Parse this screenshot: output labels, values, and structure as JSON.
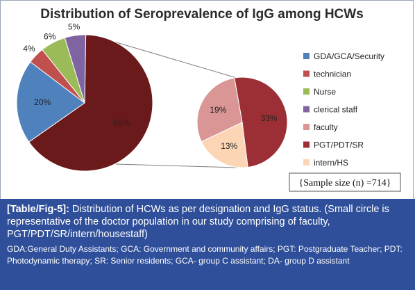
{
  "chart_data": {
    "type": "pie",
    "title": "Distribution of Seroprevalence of IgG among HCWs",
    "main_pie": {
      "slices": [
        {
          "category": "GDA/GCA/Security",
          "value": 20,
          "label": "20%",
          "color": "#4f81bd"
        },
        {
          "category": "technician",
          "value": 4,
          "label": "4%",
          "color": "#c0504d"
        },
        {
          "category": "Nurse",
          "value": 6,
          "label": "6%",
          "color": "#9bbb59"
        },
        {
          "category": "clerical staff",
          "value": 5,
          "label": "5%",
          "color": "#8064a2"
        },
        {
          "category": "doctors",
          "value": 65,
          "label": "65%",
          "color": "#6b1a1c"
        }
      ]
    },
    "sub_pie": {
      "slices": [
        {
          "category": "PGT/PDT/SR",
          "value": 33,
          "label": "33%",
          "color": "#9b2f35"
        },
        {
          "category": "intern/HS",
          "value": 13,
          "label": "13%",
          "color": "#fcd5b5"
        },
        {
          "category": "faculty",
          "value": 19,
          "label": "19%",
          "color": "#d99694"
        }
      ]
    },
    "legend": {
      "placement": "right",
      "entries": [
        {
          "label": "GDA/GCA/Security",
          "color": "#4f81bd"
        },
        {
          "label": "technician",
          "color": "#c0504d"
        },
        {
          "label": "Nurse",
          "color": "#9bbb59"
        },
        {
          "label": "clerical staff",
          "color": "#8064a2"
        },
        {
          "label": "faculty",
          "color": "#d99694"
        },
        {
          "label": "PGT/PDT/SR",
          "color": "#9b2f35"
        },
        {
          "label": "intern/HS",
          "color": "#fcd5b5"
        }
      ]
    },
    "annotation": "{Sample size (n) =714}"
  },
  "caption": {
    "ref": "[Table/Fig-5]:",
    "text": " Distribution of HCWs as per designation and IgG status. (Small circle is representative of the doctor population in our study comprising of faculty, PGT/PDT/SR/intern/housestaff)",
    "abbreviations": "GDA:General Duty Assistants; GCA: Government and community affairs; PGT: Postgraduate Teacher; PDT: Photodynamic therapy; SR: Senior residents; GCA- group C assistant; DA- group D assistant"
  },
  "colors": {
    "caption_background": "#2f4f9a",
    "connector_line": "#7f7f7f"
  }
}
